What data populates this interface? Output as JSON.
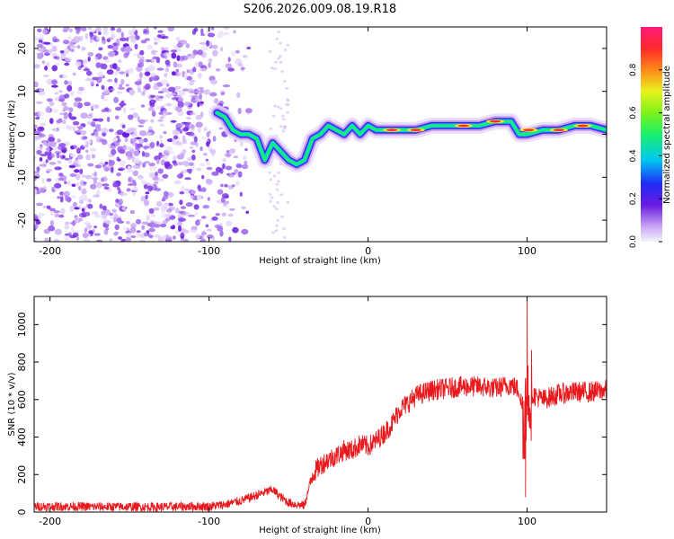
{
  "figure": {
    "title": "S206.2026.009.08.19.R18"
  },
  "chart_data": [
    {
      "type": "heatmap",
      "name": "spectrogram",
      "xlabel": "Height of straight line (km)",
      "ylabel": "Frequency (Hz)",
      "xlim": [
        -210,
        150
      ],
      "ylim": [
        -25,
        25
      ],
      "xticks": [
        -200,
        -100,
        0,
        100
      ],
      "yticks": [
        -20,
        -10,
        0,
        10,
        20
      ],
      "colorbar": {
        "label": "Normalized spectral amplitude",
        "range": [
          0,
          1
        ],
        "ticks": [
          "0.0",
          "0.2",
          "0.4",
          "0.6",
          "0.8"
        ]
      },
      "ridge": {
        "x": [
          -95,
          -90,
          -85,
          -80,
          -75,
          -70,
          -65,
          -60,
          -55,
          -50,
          -45,
          -40,
          -35,
          -30,
          -25,
          -20,
          -15,
          -10,
          -5,
          0,
          5,
          10,
          20,
          30,
          40,
          50,
          60,
          70,
          80,
          90,
          95,
          100,
          110,
          120,
          130,
          140,
          150
        ],
        "y": [
          5,
          4,
          1,
          0,
          0,
          -1,
          -6,
          -2,
          -4,
          -6,
          -7,
          -6,
          -1,
          0,
          2,
          1,
          0,
          2,
          0,
          2,
          1,
          1,
          1,
          1,
          2,
          2,
          2,
          2,
          3,
          3,
          0,
          0,
          1,
          1,
          2,
          2,
          1
        ]
      },
      "noise_region": {
        "x_from": -210,
        "x_to": -95,
        "freq_from": -25,
        "freq_to": 25
      }
    },
    {
      "type": "line",
      "name": "snr",
      "xlabel": "Height of straight line (km)",
      "ylabel": "SNR (10 * v/v)",
      "xlim": [
        -210,
        150
      ],
      "ylim": [
        0,
        1150
      ],
      "xticks": [
        -200,
        -100,
        0,
        100
      ],
      "yticks": [
        0,
        200,
        400,
        600,
        800,
        1000
      ],
      "series": [
        {
          "name": "SNR",
          "color": "#e8181c",
          "x": [
            -210,
            -190,
            -170,
            -150,
            -130,
            -110,
            -100,
            -90,
            -80,
            -70,
            -60,
            -55,
            -50,
            -45,
            -40,
            -35,
            -30,
            -25,
            -20,
            -15,
            -10,
            -5,
            0,
            5,
            10,
            15,
            20,
            25,
            30,
            40,
            50,
            60,
            70,
            80,
            90,
            95,
            98,
            100,
            102,
            105,
            110,
            120,
            130,
            140,
            150
          ],
          "y": [
            30,
            30,
            28,
            28,
            27,
            30,
            30,
            40,
            60,
            90,
            120,
            80,
            50,
            40,
            35,
            200,
            250,
            280,
            300,
            330,
            330,
            360,
            350,
            380,
            420,
            470,
            550,
            580,
            620,
            650,
            660,
            670,
            670,
            660,
            680,
            650,
            500,
            600,
            640,
            620,
            600,
            630,
            640,
            640,
            650
          ],
          "extremes": [
            {
              "x": 100,
              "y": 1130
            },
            {
              "x": 99,
              "y": 80
            }
          ],
          "noise_amplitude": 35
        }
      ]
    }
  ],
  "colors": {
    "axis": "#000000",
    "snr_line": "#e8181c",
    "noise_purple": "#6a1be0"
  }
}
